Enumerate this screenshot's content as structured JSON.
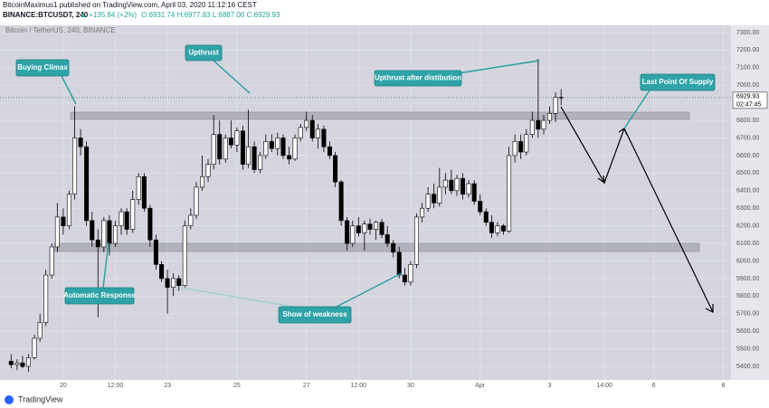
{
  "header": {
    "publisher": "BitcoinMaximus1 published on TradingView.com, April 03, 2020 11:12:16 CEST",
    "symbol": "BINANCE:BTCUSDT, 240",
    "change": "▲ +135.84 (+2%)",
    "ohlc": "O:6931.74 H:6977.83 L:6887.00 C:6929.93"
  },
  "footer": "TradingView",
  "chart_data": {
    "type": "candlestick",
    "title": "Bitcoin / TetherUS, 240, BINANCE",
    "x": [
      18.5,
      18.67,
      18.83,
      19,
      19.17,
      19.33,
      19.5,
      19.67,
      19.83,
      20,
      20.17,
      20.33,
      20.5,
      20.67,
      20.83,
      21,
      21.17,
      21.33,
      21.5,
      21.67,
      21.83,
      22,
      22.17,
      22.33,
      22.5,
      22.67,
      22.83,
      23,
      23.17,
      23.33,
      23.5,
      23.67,
      23.83,
      24,
      24.17,
      24.33,
      24.5,
      24.67,
      24.83,
      25,
      25.17,
      25.33,
      25.5,
      25.67,
      25.83,
      26,
      26.17,
      26.33,
      26.5,
      26.67,
      26.83,
      27,
      27.17,
      27.33,
      27.5,
      27.67,
      27.83,
      28,
      28.17,
      28.33,
      28.5,
      28.67,
      28.83,
      29,
      29.17,
      29.33,
      29.5,
      29.67,
      29.83,
      30,
      30.17,
      30.33,
      30.5,
      30.67,
      30.83,
      31,
      31.17,
      31.33,
      31.5,
      31.67,
      31.83,
      32,
      32.17,
      32.33,
      32.5,
      32.67,
      32.83,
      33,
      33.17,
      33.33,
      33.5,
      33.67,
      33.83,
      34,
      34.17,
      34.33
    ],
    "open": [
      5430,
      5410,
      5420,
      5400,
      5450,
      5560,
      5650,
      5920,
      6080,
      6250,
      6200,
      6380,
      6700,
      6650,
      6230,
      6120,
      6080,
      6230,
      6100,
      6200,
      6280,
      6180,
      6350,
      6480,
      6300,
      6120,
      5980,
      5900,
      5850,
      5900,
      5860,
      6200,
      6260,
      6420,
      6480,
      6550,
      6720,
      6580,
      6700,
      6660,
      6740,
      6550,
      6650,
      6520,
      6600,
      6680,
      6640,
      6700,
      6600,
      6580,
      6700,
      6760,
      6800,
      6700,
      6750,
      6650,
      6600,
      6450,
      6230,
      6100,
      6200,
      6160,
      6210,
      6180,
      6220,
      6150,
      6100,
      6050,
      5920,
      5880,
      5980,
      6250,
      6300,
      6380,
      6330,
      6420,
      6460,
      6400,
      6470,
      6380,
      6440,
      6340,
      6280,
      6220,
      6160,
      6200,
      6170,
      6600,
      6680,
      6620,
      6720,
      6800,
      6750,
      6800,
      6840,
      6931.74
    ],
    "high": [
      5470,
      5440,
      5460,
      5470,
      5580,
      5700,
      5950,
      6100,
      6330,
      6300,
      6400,
      6880,
      6750,
      6680,
      6280,
      6180,
      6250,
      6260,
      6230,
      6300,
      6300,
      6400,
      6500,
      6500,
      6320,
      6150,
      6000,
      5950,
      5930,
      5920,
      6230,
      6300,
      6450,
      6600,
      6580,
      6830,
      6800,
      6720,
      6800,
      6760,
      6770,
      6860,
      6680,
      6620,
      6720,
      6720,
      6730,
      6720,
      6650,
      6720,
      6780,
      6850,
      6830,
      6780,
      6770,
      6680,
      6620,
      6460,
      6250,
      6230,
      6250,
      6230,
      6240,
      6230,
      6240,
      6200,
      6120,
      6080,
      5960,
      6000,
      6270,
      6330,
      6420,
      6440,
      6530,
      6500,
      6520,
      6490,
      6500,
      6460,
      6460,
      6380,
      6300,
      6260,
      6220,
      6210,
      6650,
      6720,
      6720,
      6750,
      6850,
      7150,
      6830,
      6880,
      6960,
      6977.83
    ],
    "low": [
      5390,
      5380,
      5390,
      5370,
      5440,
      5540,
      5630,
      5900,
      6050,
      6150,
      6180,
      6350,
      6600,
      6200,
      6080,
      5680,
      6050,
      6030,
      6080,
      6150,
      6150,
      6160,
      6320,
      6280,
      6080,
      5950,
      5880,
      5700,
      5800,
      5830,
      5850,
      6180,
      6240,
      6400,
      6450,
      6520,
      6550,
      6560,
      6640,
      6620,
      6520,
      6530,
      6500,
      6500,
      6580,
      6620,
      6600,
      6580,
      6550,
      6570,
      6680,
      6740,
      6680,
      6640,
      6620,
      6580,
      6420,
      6200,
      6060,
      6080,
      6140,
      6060,
      6150,
      6120,
      6130,
      6080,
      6020,
      5900,
      5860,
      5860,
      5960,
      6220,
      6280,
      6300,
      6310,
      6380,
      6380,
      6370,
      6350,
      6360,
      6320,
      6260,
      6200,
      6130,
      6140,
      6150,
      6160,
      6560,
      6580,
      6600,
      6700,
      6700,
      6720,
      6780,
      6790,
      6887
    ],
    "close": [
      5410,
      5420,
      5400,
      5450,
      5560,
      5650,
      5920,
      6080,
      6250,
      6200,
      6380,
      6700,
      6650,
      6230,
      6120,
      6080,
      6230,
      6100,
      6200,
      6280,
      6180,
      6350,
      6480,
      6300,
      6120,
      5980,
      5900,
      5850,
      5900,
      5860,
      6200,
      6260,
      6420,
      6480,
      6550,
      6720,
      6580,
      6700,
      6660,
      6740,
      6550,
      6650,
      6520,
      6600,
      6680,
      6640,
      6700,
      6600,
      6580,
      6700,
      6760,
      6800,
      6700,
      6750,
      6650,
      6600,
      6450,
      6230,
      6100,
      6200,
      6160,
      6210,
      6180,
      6220,
      6150,
      6100,
      6050,
      5920,
      5880,
      5980,
      6250,
      6300,
      6380,
      6330,
      6420,
      6460,
      6400,
      6470,
      6380,
      6440,
      6340,
      6280,
      6220,
      6160,
      6200,
      6170,
      6600,
      6680,
      6620,
      6720,
      6800,
      6750,
      6800,
      6840,
      6931.74,
      6929.93
    ],
    "up_color": "#ffffff",
    "down_color": "#000000",
    "xlim": [
      18.18,
      39.22
    ],
    "xticks": [
      20,
      {
        "value": 21.5,
        "label": "12:00"
      },
      23,
      25,
      27,
      {
        "value": 28.5,
        "label": "12:00"
      },
      30,
      {
        "value": 32,
        "label": "Apr"
      },
      {
        "value": 34,
        "label": "3"
      },
      {
        "value": 35.58,
        "label": "14:00"
      },
      {
        "value": 37,
        "label": "6"
      },
      {
        "value": 39,
        "label": "8"
      }
    ],
    "ylim": [
      5323,
      7341
    ],
    "yticks": [
      {
        "value": 5400,
        "label": "5400.00"
      },
      {
        "value": 5500,
        "label": "5500.00"
      },
      {
        "value": 5600,
        "label": "5600.00"
      },
      {
        "value": 5700,
        "label": "5700.00"
      },
      {
        "value": 5800,
        "label": "5800.00"
      },
      {
        "value": 5900,
        "label": "5900.00"
      },
      {
        "value": 6000,
        "label": "6000.00"
      },
      {
        "value": 6100,
        "label": "6100.00"
      },
      {
        "value": 6200,
        "label": "6200.00"
      },
      {
        "value": 6300,
        "label": "6300.00"
      },
      {
        "value": 6400,
        "label": "6400.00"
      },
      {
        "value": 6500,
        "label": "6500.00"
      },
      {
        "value": 6600,
        "label": "6600.00"
      },
      {
        "value": 6700,
        "label": "6700.00"
      },
      {
        "value": 6800,
        "label": "6800.00"
      },
      {
        "value": 6900,
        "label": "6900.00"
      },
      {
        "value": 7000,
        "label": "7000.00"
      },
      {
        "value": 7100,
        "label": "7100.00"
      },
      {
        "value": 7200,
        "label": "7200.00"
      },
      {
        "value": 7300,
        "label": "7300.00"
      }
    ],
    "grid": true,
    "last_price": 6929.93,
    "countdown": "02:47:45",
    "annotations": [
      "Buying Climax",
      "Upthrust",
      "Upthrust after distibution",
      "Last Point Of Supply",
      "Automatic Response",
      "Show of weakness"
    ]
  }
}
